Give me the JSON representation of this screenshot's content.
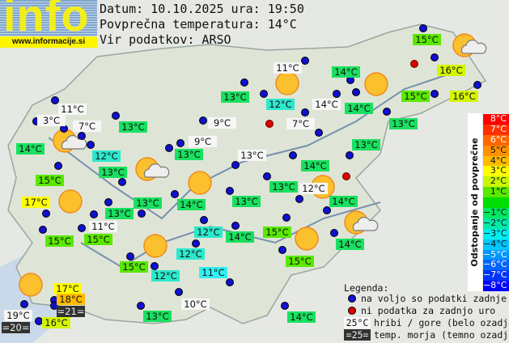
{
  "logo": {
    "text": "info",
    "url": "www.informacije.si"
  },
  "header": {
    "date_line": "Datum: 10.10.2025 ura: 19:50",
    "avg_line": "Povprečna temperatura: 14°C",
    "source_line": "Vir podatkov: ARSO"
  },
  "map": {
    "labels": [
      "11°C",
      "3°C",
      "7°C",
      "14°C",
      "13°C",
      "12°C",
      "13°C",
      "15°C",
      "17°C",
      "13°C",
      "13°C",
      "11°C",
      "15°C",
      "15°C",
      "11°C",
      "13°C",
      "12°C",
      "14°C",
      "9°C",
      "7°C",
      "9°C",
      "13°C",
      "13°C",
      "14°C",
      "13°C",
      "12°C",
      "14°C",
      "13°C",
      "14°C",
      "14°C",
      "14°C",
      "15°C",
      "16°C",
      "15°C",
      "16°C",
      "13°C",
      "13°C",
      "12°C",
      "14°C",
      "15°C",
      "14°C",
      "15°C",
      "12°C",
      "11°C",
      "10°C",
      "13°C",
      "14°C",
      "15°C",
      "12°C",
      "17°C",
      "18°C",
      "=21=",
      "19°C",
      "=20=",
      "16°C"
    ],
    "icons": [
      "sun-icon",
      "sun-cloud-icon",
      "station-dot-blue",
      "station-dot-red"
    ]
  },
  "scale": {
    "title": "Odstopanje od povprečne temperature:",
    "steps": [
      {
        "label": "8°C",
        "color": "#ff0000"
      },
      {
        "label": "7°C",
        "color": "#ff2f00"
      },
      {
        "label": "6°C",
        "color": "#ff6600"
      },
      {
        "label": "5°C",
        "color": "#ff9000"
      },
      {
        "label": "4°C",
        "color": "#ffbb00"
      },
      {
        "label": "3°C",
        "color": "#ffff00"
      },
      {
        "label": "2°C",
        "color": "#c8f500"
      },
      {
        "label": "1°C",
        "color": "#5ae800"
      },
      {
        "label": "",
        "color": "#00dd00"
      },
      {
        "label": "−1°C",
        "color": "#00e860"
      },
      {
        "label": "−2°C",
        "color": "#00eaa8"
      },
      {
        "label": "−3°C",
        "color": "#00eeee"
      },
      {
        "label": "−4°C",
        "color": "#00c8ff"
      },
      {
        "label": "−5°C",
        "color": "#0096ff"
      },
      {
        "label": "−6°C",
        "color": "#0064ff"
      },
      {
        "label": "−7°C",
        "color": "#0032ff"
      },
      {
        "label": "−8°C",
        "color": "#0000ff"
      }
    ]
  },
  "legend": {
    "title": "Legenda:",
    "available": "na voljo so podatki zadnje ure",
    "missing": "ni podatka za zadnjo uro",
    "mountain_sample": "25°C",
    "mountain": "hribi / gore (belo ozadje)",
    "sea_sample": "=25=",
    "sea": "temp. morja (temno ozadje)"
  }
}
